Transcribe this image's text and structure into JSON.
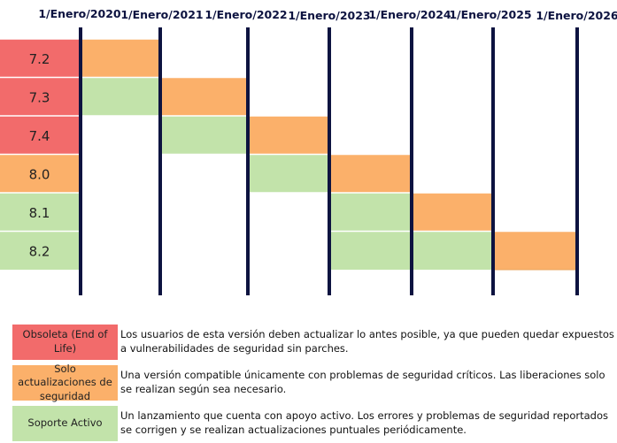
{
  "chart_data": {
    "type": "gantt",
    "title": "",
    "dates": [
      "1/Enero/2020",
      "1/Enero/2021",
      "1/Enero/2022",
      "1/Enero/2023",
      "1/Enero/2024",
      "1/Enero/2025",
      "1/Enero/2026"
    ],
    "versions": [
      {
        "name": "7.2",
        "status": "eol",
        "segments": [
          {
            "status": "security",
            "start": 0,
            "end": 1
          }
        ]
      },
      {
        "name": "7.3",
        "status": "eol",
        "segments": [
          {
            "status": "active",
            "start": 0,
            "end": 1
          },
          {
            "status": "security",
            "start": 1,
            "end": 2
          }
        ]
      },
      {
        "name": "7.4",
        "status": "eol",
        "segments": [
          {
            "status": "active",
            "start": 1,
            "end": 2
          },
          {
            "status": "security",
            "start": 2,
            "end": 3
          }
        ]
      },
      {
        "name": "8.0",
        "status": "security",
        "segments": [
          {
            "status": "active",
            "start": 2,
            "end": 3
          },
          {
            "status": "security",
            "start": 3,
            "end": 4
          }
        ]
      },
      {
        "name": "8.1",
        "status": "active",
        "segments": [
          {
            "status": "active",
            "start": 3,
            "end": 4
          },
          {
            "status": "security",
            "start": 4,
            "end": 5
          }
        ]
      },
      {
        "name": "8.2",
        "status": "active",
        "segments": [
          {
            "status": "active",
            "start": 3,
            "end": 5
          },
          {
            "status": "security",
            "start": 5,
            "end": 6
          }
        ]
      }
    ],
    "colors": {
      "eol": "#f26b6b",
      "security": "#fbb06a",
      "active": "#c2e3aa",
      "line": "#0d1340"
    }
  },
  "legend": [
    {
      "key": "eol",
      "label": "Obsoleta (End of Life)",
      "description": "Los usuarios de esta versión deben actualizar lo antes posible, ya que pueden quedar expuestos a vulnerabilidades de seguridad sin parches."
    },
    {
      "key": "security",
      "label": "Solo actualizaciones de seguridad",
      "description": "Una versión compatible únicamente con problemas de seguridad críticos. Las liberaciones solo se realizan según sea necesario."
    },
    {
      "key": "active",
      "label": "Soporte Activo",
      "description": "Un lanzamiento que cuenta con apoyo activo. Los errores y problemas de seguridad reportados se corrigen y se realizan actualizaciones puntuales periódicamente."
    }
  ]
}
